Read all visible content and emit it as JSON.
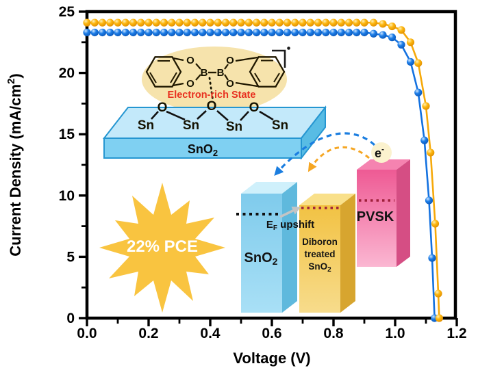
{
  "axis_titles": {
    "x": "Voltage (V)",
    "y_main": "Current Density (mA/cm",
    "y_sup": "2",
    "y_close": ")"
  },
  "chart_data": {
    "type": "line",
    "title": "",
    "xlabel": "Voltage (V)",
    "ylabel": "Current Density (mA/cm2)",
    "xlim": [
      0,
      1.2
    ],
    "ylim": [
      0,
      25
    ],
    "grid": false,
    "legend": "none",
    "x_major_ticks": [
      0,
      0.2,
      0.4,
      0.6,
      0.8,
      1.0,
      1.2
    ],
    "x_tick_labels": [
      "0.0",
      "0.2",
      "0.4",
      "0.6",
      "0.8",
      "1.0",
      "1.2"
    ],
    "x_minor_ticks": [
      0.1,
      0.3,
      0.5,
      0.7,
      0.9,
      1.1
    ],
    "y_major_ticks": [
      0,
      5,
      10,
      15,
      20,
      25
    ],
    "y_tick_labels": [
      "0",
      "5",
      "10",
      "15",
      "20",
      "25"
    ],
    "y_minor_ticks": [
      2.5,
      7.5,
      12.5,
      17.5,
      22.5
    ],
    "series": [
      {
        "id": "pristine-sno2-device",
        "color": "#1C7DE8",
        "line_color": "#1371E0",
        "marker": "circle",
        "marker_gradient": "gradBlue",
        "x": [
          0.0,
          0.025,
          0.05,
          0.075,
          0.1,
          0.125,
          0.15,
          0.175,
          0.2,
          0.225,
          0.25,
          0.275,
          0.3,
          0.325,
          0.35,
          0.375,
          0.4,
          0.425,
          0.45,
          0.475,
          0.5,
          0.525,
          0.55,
          0.575,
          0.6,
          0.625,
          0.65,
          0.675,
          0.7,
          0.725,
          0.75,
          0.775,
          0.8,
          0.825,
          0.85,
          0.875,
          0.9,
          0.93,
          0.96,
          0.99,
          1.02,
          1.05,
          1.075,
          1.095,
          1.11,
          1.12,
          1.128
        ],
        "y": [
          23.3,
          23.3,
          23.3,
          23.3,
          23.3,
          23.3,
          23.3,
          23.3,
          23.3,
          23.3,
          23.3,
          23.3,
          23.3,
          23.3,
          23.3,
          23.3,
          23.3,
          23.3,
          23.3,
          23.3,
          23.3,
          23.3,
          23.3,
          23.3,
          23.3,
          23.3,
          23.3,
          23.3,
          23.3,
          23.3,
          23.3,
          23.3,
          23.3,
          23.3,
          23.3,
          23.3,
          23.3,
          23.2,
          23.1,
          22.9,
          22.3,
          20.9,
          18.4,
          14.5,
          9.6,
          4.9,
          0.0
        ]
      },
      {
        "id": "diboron-treated-sno2-device",
        "color": "#FDB710",
        "line_color": "#F6A90A",
        "marker": "circle",
        "marker_gradient": "gradYellow",
        "x": [
          0.0,
          0.025,
          0.05,
          0.075,
          0.1,
          0.125,
          0.15,
          0.175,
          0.2,
          0.225,
          0.25,
          0.275,
          0.3,
          0.325,
          0.35,
          0.375,
          0.4,
          0.425,
          0.45,
          0.475,
          0.5,
          0.525,
          0.55,
          0.575,
          0.6,
          0.625,
          0.65,
          0.675,
          0.7,
          0.725,
          0.75,
          0.775,
          0.8,
          0.825,
          0.85,
          0.875,
          0.9,
          0.93,
          0.96,
          0.99,
          1.02,
          1.05,
          1.075,
          1.1,
          1.115,
          1.13,
          1.14,
          1.143
        ],
        "y": [
          24.1,
          24.1,
          24.1,
          24.1,
          24.1,
          24.1,
          24.1,
          24.1,
          24.1,
          24.1,
          24.1,
          24.1,
          24.1,
          24.1,
          24.1,
          24.1,
          24.1,
          24.1,
          24.1,
          24.1,
          24.1,
          24.1,
          24.1,
          24.1,
          24.1,
          24.1,
          24.1,
          24.1,
          24.1,
          24.1,
          24.1,
          24.1,
          24.1,
          24.1,
          24.1,
          24.1,
          24.1,
          24.1,
          24.0,
          23.8,
          23.5,
          22.5,
          20.8,
          17.3,
          13.5,
          7.7,
          2.0,
          0.0
        ]
      }
    ]
  },
  "inset": {
    "molecule": {
      "electron_rich_state": "Electron-rich State",
      "b_left": "B",
      "b_right": "B",
      "o_top_left": "O",
      "o_bottom_left": "O",
      "o_top_right": "O",
      "o_bottom_right": "O"
    },
    "surface": {
      "sn1": "Sn",
      "sn2": "Sn",
      "sn3": "Sn",
      "sn4": "Sn",
      "o1": "O",
      "o2": "O",
      "o3": "O",
      "slab_main": "SnO",
      "slab_sub": "2"
    },
    "pce_badge": "22% PCE",
    "energy": {
      "bar_sno2_main": "SnO",
      "bar_sno2_sub": "2",
      "bar_diboron_line1": "Diboron",
      "bar_diboron_line2": "treated",
      "bar_diboron_line3_main": "SnO",
      "bar_diboron_line3_sub": "2",
      "bar_pvsk": "PVSK",
      "ef_main": "E",
      "ef_sub": "F",
      "ef_rest": " upshift",
      "electron_main": "e",
      "electron_sup": "-"
    }
  },
  "colors": {
    "curve_blue": "#1C7DE8",
    "curve_yellow": "#FDB710",
    "molecule_ellipse": "#F6E3AC",
    "slab_front": "#7FD0F2",
    "starburst": "#F9C440",
    "bar_blue": "#8CD3EF",
    "bar_yellow": "#F4C94F",
    "bar_pink": "#EE5A94",
    "red_dotted": "#9E1F3A",
    "note_red": "#E8301F"
  }
}
